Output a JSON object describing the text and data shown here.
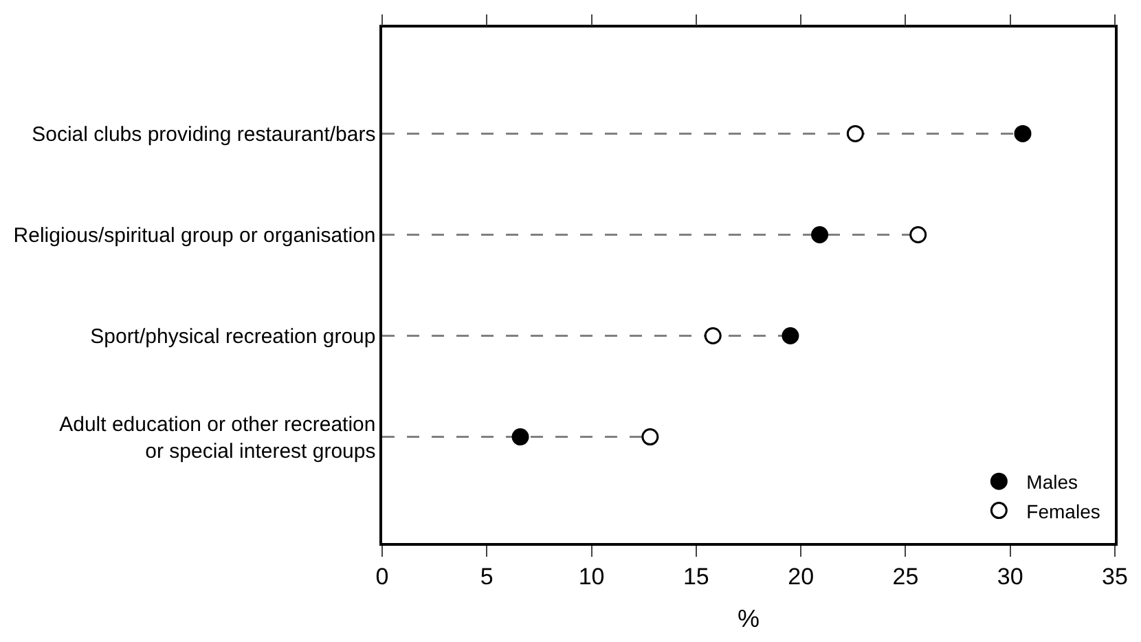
{
  "chart_data": {
    "type": "lollipop",
    "orientation": "horizontal",
    "xlabel": "%",
    "categories": [
      "Social clubs providing restaurant/bars",
      "Religious/spiritual group or organisation",
      "Sport/physical recreation group",
      "Adult education or other recreation\nor special interest groups"
    ],
    "series": [
      {
        "name": "Males",
        "color": "#000000",
        "values": [
          30.6,
          20.9,
          19.5,
          6.6
        ]
      },
      {
        "name": "Females",
        "color": "#ffffff",
        "values": [
          22.6,
          25.6,
          15.8,
          12.8
        ]
      }
    ],
    "xlim": [
      0,
      35
    ],
    "xticks": [
      0,
      5,
      10,
      15,
      20,
      25,
      30,
      35
    ],
    "legend": "bottom right",
    "marker": "circle",
    "line_style": "dashed"
  }
}
